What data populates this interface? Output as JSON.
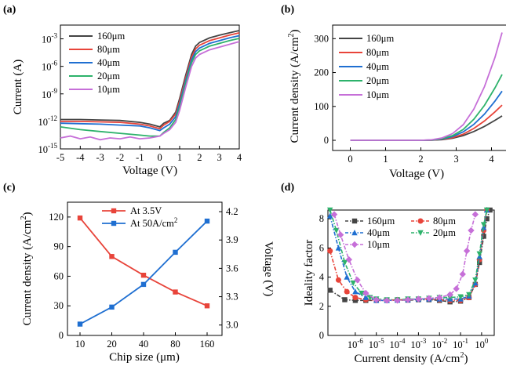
{
  "chart_data": [
    {
      "panel": "(a)",
      "type": "line",
      "xlabel": "Voltage (V)",
      "ylabel": "Current (A)",
      "xlim": [
        -5,
        4
      ],
      "ylim_exp": [
        -15,
        -1.5
      ],
      "y_log": true,
      "x_ticks": [
        "-5",
        "-4",
        "-3",
        "-2",
        "-1",
        "0",
        "1",
        "2",
        "3",
        "4"
      ],
      "y_ticks": [
        {
          "base": "10",
          "exp": "-3"
        },
        {
          "base": "10",
          "exp": "-6"
        },
        {
          "base": "10",
          "exp": "-9"
        },
        {
          "base": "10",
          "exp": "-12"
        },
        {
          "base": "10",
          "exp": "-15"
        }
      ],
      "legend_position": "top-left",
      "series": [
        {
          "name": "160μm",
          "color": "#444444",
          "x": [
            -5,
            -4,
            -3,
            -2,
            -1,
            -0.5,
            0,
            0.2,
            0.5,
            0.8,
            1.0,
            1.3,
            1.6,
            1.8,
            2.0,
            2.5,
            3.0,
            3.5,
            4.0
          ],
          "log10y": [
            -11.8,
            -11.8,
            -11.85,
            -11.9,
            -12.1,
            -12.3,
            -12.6,
            -12.2,
            -11.9,
            -11.0,
            -9.5,
            -7.0,
            -4.7,
            -3.8,
            -3.4,
            -2.9,
            -2.6,
            -2.35,
            -2.1
          ]
        },
        {
          "name": "80μm",
          "color": "#e8443a",
          "x": [
            -5,
            -4,
            -3,
            -2,
            -1,
            -0.5,
            0,
            0.2,
            0.5,
            0.8,
            1.0,
            1.3,
            1.6,
            1.8,
            2.0,
            2.5,
            3.0,
            3.5,
            4.0
          ],
          "log10y": [
            -12.0,
            -12.0,
            -12.05,
            -12.1,
            -12.3,
            -12.5,
            -12.8,
            -12.4,
            -12.0,
            -11.2,
            -9.8,
            -7.3,
            -5.0,
            -4.1,
            -3.7,
            -3.2,
            -2.9,
            -2.6,
            -2.35
          ]
        },
        {
          "name": "40μm",
          "color": "#1f6fd1",
          "x": [
            -5,
            -4,
            -3,
            -2,
            -1,
            -0.5,
            0,
            0.2,
            0.5,
            0.8,
            1.0,
            1.3,
            1.6,
            1.8,
            2.0,
            2.5,
            3.0,
            3.5,
            4.0
          ],
          "log10y": [
            -12.2,
            -12.25,
            -12.3,
            -12.4,
            -12.5,
            -12.7,
            -13.0,
            -12.7,
            -12.3,
            -11.5,
            -10.1,
            -7.6,
            -5.3,
            -4.4,
            -4.0,
            -3.5,
            -3.2,
            -2.9,
            -2.65
          ]
        },
        {
          "name": "20μm",
          "color": "#2db26b",
          "x": [
            -5,
            -4,
            -3,
            -2,
            -1,
            -0.5,
            0,
            0.2,
            0.5,
            0.8,
            1.0,
            1.3,
            1.6,
            1.8,
            2.0,
            2.5,
            3.0,
            3.5,
            4.0
          ],
          "log10y": [
            -12.6,
            -12.9,
            -13.1,
            -13.3,
            -13.5,
            -13.6,
            -13.6,
            -13.2,
            -12.7,
            -11.8,
            -10.4,
            -7.9,
            -5.6,
            -4.7,
            -4.3,
            -3.8,
            -3.5,
            -3.2,
            -2.95
          ]
        },
        {
          "name": "10μm",
          "color": "#c66fd8",
          "x": [
            -5,
            -4.5,
            -4,
            -3.5,
            -3,
            -2.5,
            -2,
            -1.5,
            -1,
            -0.5,
            0,
            0.2,
            0.5,
            0.8,
            1.0,
            1.3,
            1.6,
            1.8,
            2.0,
            2.5,
            3.0,
            3.5,
            4.0
          ],
          "log10y": [
            -13.8,
            -13.6,
            -13.9,
            -13.7,
            -14.0,
            -13.8,
            -13.9,
            -13.7,
            -13.9,
            -13.8,
            -13.6,
            -13.3,
            -12.9,
            -12.1,
            -10.8,
            -8.3,
            -6.0,
            -5.1,
            -4.7,
            -4.2,
            -3.9,
            -3.6,
            -3.3
          ]
        }
      ]
    },
    {
      "panel": "(b)",
      "type": "line",
      "xlabel": "Voltage (V)",
      "ylabel_main": "Current density (A/cm",
      "ylabel_sup": "2",
      "ylabel_end": ")",
      "xlim": [
        -0.5,
        4.5
      ],
      "ylim": [
        -30,
        340
      ],
      "x_ticks": [
        0,
        1,
        2,
        3,
        4
      ],
      "y_ticks": [
        0,
        100,
        200,
        300
      ],
      "legend_position": "top-left",
      "series": [
        {
          "name": "160μm",
          "color": "#444444",
          "x": [
            0,
            1,
            2,
            2.3,
            2.6,
            2.9,
            3.2,
            3.5,
            3.8,
            4.1,
            4.3
          ],
          "y": [
            0,
            0,
            0,
            0.5,
            2,
            6,
            14,
            26,
            41,
            59,
            72
          ]
        },
        {
          "name": "80μm",
          "color": "#e8443a",
          "x": [
            0,
            1,
            2,
            2.3,
            2.6,
            2.9,
            3.2,
            3.5,
            3.8,
            4.1,
            4.3
          ],
          "y": [
            0,
            0,
            0,
            0.5,
            3,
            8,
            18,
            35,
            57,
            84,
            104
          ]
        },
        {
          "name": "40μm",
          "color": "#1f6fd1",
          "x": [
            0,
            1,
            2,
            2.3,
            2.6,
            2.9,
            3.2,
            3.5,
            3.8,
            4.1,
            4.3
          ],
          "y": [
            0,
            0,
            0,
            0.8,
            4,
            11,
            25,
            47,
            77,
            116,
            145
          ]
        },
        {
          "name": "20μm",
          "color": "#2db26b",
          "x": [
            0,
            1,
            2,
            2.3,
            2.6,
            2.9,
            3.2,
            3.5,
            3.8,
            4.1,
            4.3
          ],
          "y": [
            0,
            0,
            0,
            1,
            5,
            14,
            32,
            62,
            103,
            155,
            194
          ]
        },
        {
          "name": "10μm",
          "color": "#c66fd8",
          "x": [
            0,
            1,
            2,
            2.3,
            2.6,
            2.9,
            3.2,
            3.5,
            3.8,
            4.1,
            4.3
          ],
          "y": [
            0,
            0,
            0,
            1.5,
            7,
            20,
            46,
            92,
            158,
            245,
            318
          ]
        }
      ]
    },
    {
      "panel": "(c)",
      "type": "line",
      "xlabel": "Chip size (μm)",
      "ylabel_main": "Current density (A/cm",
      "ylabel_sup": "2",
      "ylabel_end": ")",
      "ylabel_right": "Voltage (V)",
      "categories": [
        "10",
        "20",
        "40",
        "80",
        "160"
      ],
      "ylim_left": [
        0,
        135
      ],
      "y_ticks_left": [
        0,
        30,
        60,
        90,
        120
      ],
      "ylim_right": [
        2.89,
        4.3
      ],
      "y_ticks_right": [
        "3.0",
        "3.3",
        "3.6",
        "3.9",
        "4.2"
      ],
      "legend_position": "top-center",
      "series": [
        {
          "name": "At 3.5V",
          "color": "#e8443a",
          "axis": "left",
          "marker": "square",
          "values": [
            119,
            80,
            61,
            44,
            30
          ]
        },
        {
          "name_main": "At 50A/cm",
          "name_sup": "2",
          "color": "#1f6fd1",
          "axis": "right",
          "marker": "square",
          "values": [
            3.01,
            3.19,
            3.43,
            3.77,
            4.1
          ]
        }
      ]
    },
    {
      "panel": "(d)",
      "type": "line",
      "xlabel_main": "Current density (A/cm",
      "xlabel_sup": "2",
      "xlabel_end": ")",
      "ylabel": "Ideality factor",
      "x_log": true,
      "xlim_exp": [
        -7.3,
        0.6
      ],
      "ylim": [
        0,
        8.6
      ],
      "y_ticks": [
        0,
        2,
        4,
        6,
        8
      ],
      "x_ticks": [
        {
          "base": "10",
          "exp": "-6"
        },
        {
          "base": "10",
          "exp": "-5"
        },
        {
          "base": "10",
          "exp": "-4"
        },
        {
          "base": "10",
          "exp": "-3"
        },
        {
          "base": "10",
          "exp": "-2"
        },
        {
          "base": "10",
          "exp": "-1"
        },
        {
          "base": "10",
          "exp": "0"
        }
      ],
      "legend_position": "top-left",
      "series": [
        {
          "name": "160μm",
          "color": "#444444",
          "marker": "square",
          "log10x": [
            -7.2,
            -6.5,
            -6.0,
            -5.5,
            -5.0,
            -4.5,
            -4.0,
            -3.5,
            -3.0,
            -2.5,
            -2.0,
            -1.5,
            -1.0,
            -0.6,
            -0.3,
            -0.1,
            0.1,
            0.25,
            0.4
          ],
          "y": [
            3.1,
            2.45,
            2.4,
            2.4,
            2.4,
            2.4,
            2.42,
            2.42,
            2.45,
            2.45,
            2.4,
            2.3,
            2.35,
            2.6,
            3.5,
            5.0,
            6.8,
            8.0,
            8.6
          ]
        },
        {
          "name": "80μm",
          "color": "#e8443a",
          "marker": "circle",
          "log10x": [
            -7.2,
            -6.8,
            -6.4,
            -6.0,
            -5.5,
            -5.0,
            -4.5,
            -4.0,
            -3.5,
            -3.0,
            -2.5,
            -2.0,
            -1.5,
            -1.0,
            -0.6,
            -0.3,
            -0.1,
            0.1,
            0.25
          ],
          "y": [
            5.8,
            3.8,
            3.0,
            2.6,
            2.45,
            2.4,
            2.4,
            2.45,
            2.45,
            2.5,
            2.5,
            2.45,
            2.4,
            2.4,
            2.6,
            3.5,
            5.2,
            7.2,
            8.6
          ]
        },
        {
          "name": "40μm",
          "color": "#1f6fd1",
          "marker": "triangle",
          "log10x": [
            -7.2,
            -6.8,
            -6.4,
            -6.0,
            -5.5,
            -5.0,
            -4.5,
            -4.0,
            -3.5,
            -3.0,
            -2.5,
            -2.0,
            -1.5,
            -1.0,
            -0.6,
            -0.3,
            -0.1,
            0.1,
            0.25
          ],
          "y": [
            8.2,
            6.0,
            4.0,
            3.0,
            2.6,
            2.4,
            2.4,
            2.42,
            2.45,
            2.5,
            2.5,
            2.5,
            2.5,
            2.5,
            2.7,
            3.6,
            5.4,
            7.4,
            8.6
          ]
        },
        {
          "name": "20μm",
          "color": "#2db26b",
          "marker": "triangle-down",
          "log10x": [
            -7.2,
            -6.9,
            -6.5,
            -6.1,
            -5.7,
            -5.3,
            -5.0,
            -4.5,
            -4.0,
            -3.5,
            -3.0,
            -2.5,
            -2.0,
            -1.5,
            -1.0,
            -0.6,
            -0.3,
            -0.1,
            0.1,
            0.25
          ],
          "y": [
            8.6,
            7.2,
            5.0,
            3.6,
            2.9,
            2.6,
            2.5,
            2.45,
            2.45,
            2.5,
            2.5,
            2.55,
            2.6,
            2.6,
            2.65,
            2.8,
            3.8,
            5.6,
            7.6,
            8.6
          ]
        },
        {
          "name": "10μm",
          "color": "#c66fd8",
          "marker": "diamond",
          "log10x": [
            -7.0,
            -6.7,
            -6.3,
            -5.9,
            -5.5,
            -5.0,
            -4.5,
            -4.0,
            -3.5,
            -3.0,
            -2.5,
            -2.0,
            -1.5,
            -1.2,
            -0.9,
            -0.7,
            -0.5,
            -0.3
          ],
          "y": [
            8.3,
            6.9,
            5.2,
            3.8,
            2.9,
            2.45,
            2.4,
            2.4,
            2.45,
            2.5,
            2.55,
            2.6,
            2.8,
            3.2,
            4.2,
            5.8,
            7.2,
            8.3
          ]
        }
      ]
    }
  ]
}
